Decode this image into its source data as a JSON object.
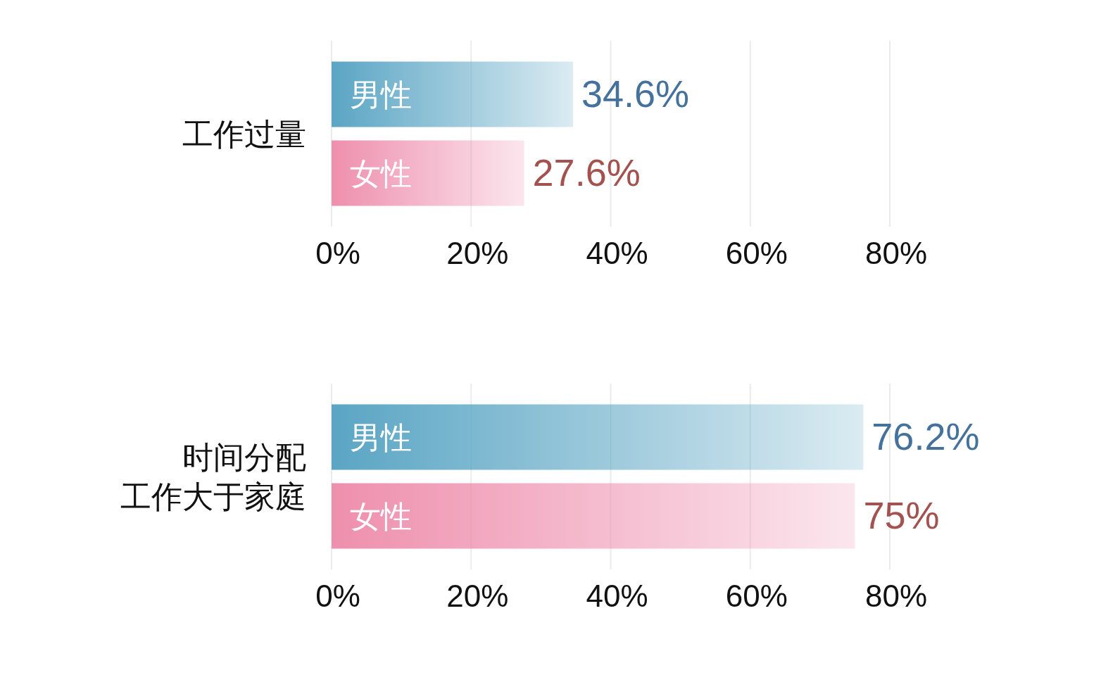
{
  "chart_data": [
    {
      "type": "bar",
      "orientation": "horizontal",
      "categories": [
        "工作过量"
      ],
      "xlim": [
        0,
        80
      ],
      "xticks": [
        {
          "value": 0,
          "label": "0%"
        },
        {
          "value": 20,
          "label": "20%"
        },
        {
          "value": 40,
          "label": "40%"
        },
        {
          "value": 60,
          "label": "60%"
        },
        {
          "value": 80,
          "label": "80%"
        }
      ],
      "grid": "x",
      "series": [
        {
          "name": "男性",
          "color": "#5aa5c4",
          "values": [
            34.6
          ],
          "value_labels": [
            "34.6%"
          ]
        },
        {
          "name": "女性",
          "color": "#ee8fae",
          "values": [
            27.6
          ],
          "value_labels": [
            "27.6%"
          ]
        }
      ]
    },
    {
      "type": "bar",
      "orientation": "horizontal",
      "categories": [
        "时间分配工作大于家庭"
      ],
      "xlim": [
        0,
        80
      ],
      "xticks": [
        {
          "value": 0,
          "label": "0%"
        },
        {
          "value": 20,
          "label": "20%"
        },
        {
          "value": 40,
          "label": "40%"
        },
        {
          "value": 60,
          "label": "60%"
        },
        {
          "value": 80,
          "label": "80%"
        }
      ],
      "grid": "x",
      "series": [
        {
          "name": "男性",
          "color": "#5aa5c4",
          "values": [
            76.2
          ],
          "value_labels": [
            "76.2%"
          ]
        },
        {
          "name": "女性",
          "color": "#ee8fae",
          "values": [
            75
          ],
          "value_labels": [
            "75%"
          ]
        }
      ]
    }
  ]
}
